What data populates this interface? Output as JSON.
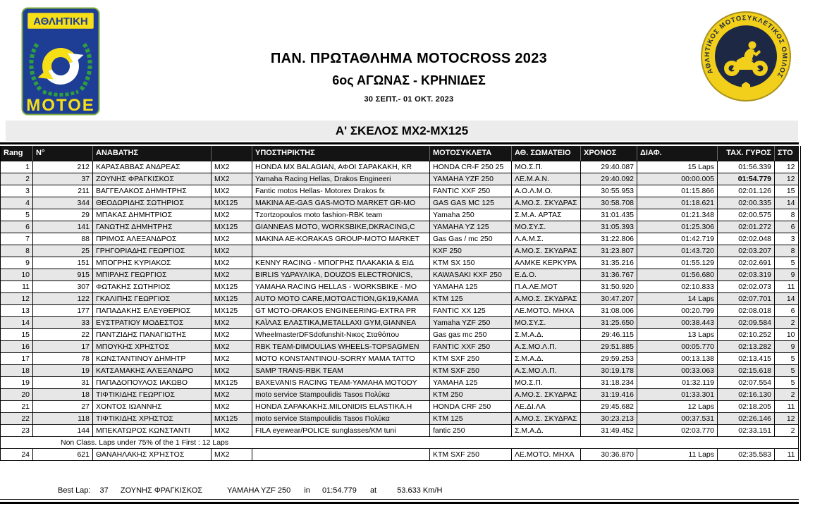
{
  "header": {
    "title": "ΠΑΝ. ΠΡΩΤΑΘΛΗΜΑ MOTOCROSS 2023",
    "subtitle": "6ος ΑΓΩΝΑΣ - ΚΡΗΝΙΔΕΣ",
    "date_range": "30 ΣΕΠΤ.- 01 ΟΚΤ. 2023",
    "section_title": "Α' ΣΚΕΛΟΣ MX2-MX125"
  },
  "left_logo": {
    "top_text": "ΑΘΛΗΤΙΚΗ",
    "bottom_text": "ΜΟΤΟΕ"
  },
  "right_logo": {
    "ring_text": "ΑΘΛΗΤΙΚΟΣ ΜΟΤΟΣΥΚΛΕΤΙΚΟΣ ΟΜΙΛΟΣ ΚΡΗΝΙΔΩΝ",
    "icon": "motorcycle-rider-icon"
  },
  "table": {
    "columns": [
      "Rang",
      "N°",
      "ΑΝΑΒΑΤΗΣ",
      "",
      "ΥΠΟΣΤΗΡΙΚΤΗΣ",
      "ΜΟΤΟΣΥΚΛΕΤΑ",
      "ΑΘ. ΣΩΜΑΤΕΙΟ",
      "ΧΡΟΝΟΣ",
      "ΔΙΑΦ.",
      "ΤΑΧ. ΓΥΡΟΣ",
      "ΣΤΟ"
    ],
    "note": "Non Class. Laps under 75% of the 1 First : 12 Laps",
    "rows": [
      {
        "rank": "1",
        "num": "212",
        "rider": "ΚΑΡΑΣΑΒΒΑΣ ΑΝΔΡΕΑΣ",
        "cls": "MX2",
        "sponsor": "HONDA MX BALAGIAN, ΑΦΟΙ ΣΑΡΑΚΑΚΗ, KR",
        "bike": "HONDA CR-F 250 25",
        "club": "ΜΟ.Σ.Π.",
        "time": "29:40.087",
        "diff": "15 Laps",
        "blap": "01:56.339",
        "lap": "12"
      },
      {
        "rank": "2",
        "num": "37",
        "rider": "ΖΟΥΝΗΣ ΦΡΑΓΚΙΣΚΟΣ",
        "cls": "MX2",
        "sponsor": "Yamaha Racing Hellas, Drakos Engineeri",
        "bike": "YAMAHA YZF 250",
        "club": "ΛΕ.Μ.Α.Ν.",
        "time": "29:40.092",
        "diff": "00:00.005",
        "blap": "01:54.779",
        "lap": "12",
        "overall_best": true
      },
      {
        "rank": "3",
        "num": "211",
        "rider": "ΒΑΓΓΕΛΑΚΟΣ ΔΗΜΗΤΡΗΣ",
        "cls": "MX2",
        "sponsor": "Fantic motos Hellas- Motorex Drakos fx",
        "bike": "FANTIC XXF 250",
        "club": "Α.Ο.Λ.Μ.Ο.",
        "time": "30:55.953",
        "diff": "01:15.866",
        "blap": "02:01.126",
        "lap": "15"
      },
      {
        "rank": "4",
        "num": "344",
        "rider": "ΘΕΟΔΩΡΙΔΗΣ ΣΩΤΗΡΙΟΣ",
        "cls": "MX125",
        "sponsor": "MAKINA AE-GAS GAS-MOTO MARKET GR-MO",
        "bike": "GAS GAS MC 125",
        "club": "Α.ΜΟ.Σ. ΣΚΥΔΡΑΣ",
        "time": "30:58.708",
        "diff": "01:18.621",
        "blap": "02:00.335",
        "lap": "14"
      },
      {
        "rank": "5",
        "num": "29",
        "rider": "ΜΠΑΚΑΣ ΔΗΜΗΤΡΙΟΣ",
        "cls": "MX2",
        "sponsor": "Tzortzopoulos moto fashion-RBK team",
        "bike": "Yamaha 250",
        "club": "Σ.Μ.Α. ΑΡΤΑΣ",
        "time": "31:01.435",
        "diff": "01:21.348",
        "blap": "02:00.575",
        "lap": "8"
      },
      {
        "rank": "6",
        "num": "141",
        "rider": "ΓΑΝΩΤΗΣ ΔΗΜΗΤΡΗΣ",
        "cls": "MX125",
        "sponsor": "GIANNEAS MOTO, WORKSBIKE,DKRACING,C",
        "bike": "YAMAHA YZ 125",
        "club": "ΜΟ.ΣΥ.Σ.",
        "time": "31:05.393",
        "diff": "01:25.306",
        "blap": "02:01.272",
        "lap": "6"
      },
      {
        "rank": "7",
        "num": "88",
        "rider": "ΠΡΙΜΟΣ ΑΛΕΞΑΝΔΡΟΣ",
        "cls": "MX2",
        "sponsor": "MAKINA AE-KORAKAS GROUP-MOTO MARKET",
        "bike": "Gas Gas / mc 250",
        "club": "Λ.Α.Μ.Σ.",
        "time": "31:22.806",
        "diff": "01:42.719",
        "blap": "02:02.048",
        "lap": "3"
      },
      {
        "rank": "8",
        "num": "25",
        "rider": "ΓΡΗΓΟΡΙΑΔΗΣ ΓΕΩΡΓΙΟΣ",
        "cls": "MX2",
        "sponsor": "",
        "bike": "KXF 250",
        "club": "Α.ΜΟ.Σ. ΣΚΥΔΡΑΣ",
        "time": "31:23.807",
        "diff": "01:43.720",
        "blap": "02:03.207",
        "lap": "8"
      },
      {
        "rank": "9",
        "num": "151",
        "rider": "ΜΠΟΓΡΗΣ ΚΥΡΙΑΚΟΣ",
        "cls": "MX2",
        "sponsor": "KENNY RACING - ΜΠΟΓΡΗΣ ΠΛΑΚΑΚΙΑ & ΕΙΔ",
        "bike": "KTM SX 150",
        "club": "ΑΛΜΚΕ ΚΕΡΚΥΡΑ",
        "time": "31:35.216",
        "diff": "01:55.129",
        "blap": "02:02.691",
        "lap": "5"
      },
      {
        "rank": "10",
        "num": "915",
        "rider": "ΜΠΙΡΛΗΣ ΓΕΩΡΓΙΟΣ",
        "cls": "MX2",
        "sponsor": "BIRLIS ΥΔΡΑΥΛΙΚΑ, DOUZOS ELECTRONICS,",
        "bike": "KAWASAKI KXF 250",
        "club": "Ε.Δ.Ο.",
        "time": "31:36.767",
        "diff": "01:56.680",
        "blap": "02:03.319",
        "lap": "9"
      },
      {
        "rank": "11",
        "num": "307",
        "rider": "ΦΩΤΑΚΗΣ ΣΩΤΗΡΙΟΣ",
        "cls": "MX125",
        "sponsor": "YAMAHA RACING HELLAS - WORKSBIKE - MO",
        "bike": "YAMAHA 125",
        "club": "Π.Α.ΛΕ.ΜΟΤ",
        "time": "31:50.920",
        "diff": "02:10.833",
        "blap": "02:02.073",
        "lap": "11"
      },
      {
        "rank": "12",
        "num": "122",
        "rider": "ΓΚΑΛΙΠΗΣ ΓΕΩΡΓΙΟΣ",
        "cls": "MX125",
        "sponsor": "AUTO MOTO CARE,MOTOACTION,GK19,KAMA",
        "bike": "KTM 125",
        "club": "Α.ΜΟ.Σ. ΣΚΥΔΡΑΣ",
        "time": "30:47.207",
        "diff": "14 Laps",
        "blap": "02:07.701",
        "lap": "14"
      },
      {
        "rank": "13",
        "num": "177",
        "rider": "ΠΑΠΑΔΑΚΗΣ ΕΛΕΥΘΕΡΙΟΣ",
        "cls": "MX125",
        "sponsor": "GT MOTO-DRAKOS ENGINEERING-EXTRA PR",
        "bike": "FANTIC XX 125",
        "club": "ΛΕ.ΜΟΤΟ. ΜΗΧΑ",
        "time": "31:08.006",
        "diff": "00:20.799",
        "blap": "02:08.018",
        "lap": "6"
      },
      {
        "rank": "14",
        "num": "33",
        "rider": "ΕΥΣΤΡΑΤΙΟΥ ΜΟΔΕΣΤΟΣ",
        "cls": "MX2",
        "sponsor": "ΚΑΪΛΑΣ ΕΛΑΣΤΙΚΑ,METALLAXI GYM,GIANNEA",
        "bike": "Yamaha YZF 250",
        "club": "ΜΟ.ΣΥ.Σ.",
        "time": "31:25.650",
        "diff": "00:38.443",
        "blap": "02:09.584",
        "lap": "2"
      },
      {
        "rank": "15",
        "num": "22",
        "rider": "ΠΑΝΤΖΙΔΗΣ ΠΑΝΑΓΙΩΤΗΣ",
        "cls": "MX2",
        "sponsor": "WheelmasterDFSdofunshit-Νικος Σταθόπου",
        "bike": "Gas gas mc 250",
        "club": "Σ.Μ.Α.Δ.",
        "time": "29:46.115",
        "diff": "13 Laps",
        "blap": "02:10.252",
        "lap": "10"
      },
      {
        "rank": "16",
        "num": "17",
        "rider": "ΜΠΟΥΚΗΣ ΧΡΗΣΤΟΣ",
        "cls": "MX2",
        "sponsor": "RBK TEAM-DIMOULIAS WHEELS-TOPSAGMEN",
        "bike": "FANTIC XXF 250",
        "club": "Α.Σ.ΜΟ.Λ.Π.",
        "time": "29:51.885",
        "diff": "00:05.770",
        "blap": "02:13.282",
        "lap": "9"
      },
      {
        "rank": "17",
        "num": "78",
        "rider": "ΚΩΝΣΤΑΝΤΙΝΟΥ ΔΗΜΗΤΡ",
        "cls": "MX2",
        "sponsor": "MOTO KONSTANTINOU-SORRY MAMA TATTO",
        "bike": "KTM SXF 250",
        "club": "Σ.Μ.Α.Δ.",
        "time": "29:59.253",
        "diff": "00:13.138",
        "blap": "02:13.415",
        "lap": "5"
      },
      {
        "rank": "18",
        "num": "19",
        "rider": "ΚΑΤΣΑΜΑΚΗΣ ΑΛΈΞΑΝΔΡΟ",
        "cls": "MX2",
        "sponsor": "SAMP TRANS-RBK TEAM",
        "bike": "KTM SXF 250",
        "club": "Α.Σ.ΜΟ.Λ.Π.",
        "time": "30:19.178",
        "diff": "00:33.063",
        "blap": "02:15.618",
        "lap": "5"
      },
      {
        "rank": "19",
        "num": "31",
        "rider": "ΠΑΠΑΔΟΠΟΥΛΟΣ ΙΑΚΩΒΟ",
        "cls": "MX125",
        "sponsor": "BAXEVANIS RACING TEAM-YAMAHA MOTODY",
        "bike": "YAMAHA 125",
        "club": "ΜΟ.Σ.Π.",
        "time": "31:18.234",
        "diff": "01:32.119",
        "blap": "02:07.554",
        "lap": "5"
      },
      {
        "rank": "20",
        "num": "18",
        "rider": "ΤΙΦΤΙΚΙΔΗΣ ΓΕΩΡΓΙΟΣ",
        "cls": "MX2",
        "sponsor": "moto service Stampoulidis Tasos Πολύκα",
        "bike": "KTM 250",
        "club": "Α.ΜΟ.Σ. ΣΚΥΔΡΑΣ",
        "time": "31:19.416",
        "diff": "01:33.301",
        "blap": "02:16.130",
        "lap": "2"
      },
      {
        "rank": "21",
        "num": "27",
        "rider": "ΧΟΝΤΟΣ ΙΩΑΝΝΗΣ",
        "cls": "MX2",
        "sponsor": "HONDA ΣΑΡΑΚΑΚΗΣ.MILONIDIS ELASTIKA.H",
        "bike": "HONDA CRF 250",
        "club": "ΛΕ.ΔΙ.ΛΑ",
        "time": "29:45.682",
        "diff": "12 Laps",
        "blap": "02:18.205",
        "lap": "11"
      },
      {
        "rank": "22",
        "num": "118",
        "rider": "ΤΙΦΤΙΚΙΔΗΣ ΧΡΗΣΤΟΣ",
        "cls": "MX125",
        "sponsor": "moto service Stampoulidis Tasos Πολύκα",
        "bike": "KTM 125",
        "club": "Α.ΜΟ.Σ. ΣΚΥΔΡΑΣ",
        "time": "30:23.213",
        "diff": "00:37.531",
        "blap": "02:26.146",
        "lap": "12"
      },
      {
        "rank": "23",
        "num": "144",
        "rider": "ΜΠΕΚΑΤΩΡΟΣ ΚΩΝΣΤΑΝΤΙ",
        "cls": "MX2",
        "sponsor": "FILA eyewear/POLICE sunglasses/KM tuni",
        "bike": "fantic 250",
        "club": "Σ.Μ.Α.Δ.",
        "time": "31:49.452",
        "diff": "02:03.770",
        "blap": "02:33.151",
        "lap": "2"
      },
      {
        "rank": "24",
        "num": "621",
        "rider": "ΘΑΝΑΗΛΑΚΗΣ ΧΡΉΣΤΟΣ",
        "cls": "MX2",
        "sponsor": "",
        "bike": "KTM SXF 250",
        "club": "ΛΕ.ΜΟΤΟ. ΜΗΧΑ",
        "time": "30:36.870",
        "diff": "11 Laps",
        "blap": "02:35.583",
        "lap": "11"
      }
    ]
  },
  "footer": {
    "best_lap": {
      "label": "Best Lap:",
      "number": "37",
      "rider": "ΖΟΥΝΗΣ ΦΡΑΓΚΙΣΚΟΣ",
      "bike": "YAMAHA YZF 250",
      "in_word": "in",
      "time": "01:54.779",
      "at_word": "at",
      "speed": "53.633 Km/H"
    }
  },
  "colors": {
    "header_band": "#141414",
    "row_stripe": "#e7e7e7",
    "section_band": "#ececec",
    "logo_blue": "#1e3d94",
    "logo_yellow": "#f6df17",
    "logo_green": "#2f9e3f",
    "badge_yellow": "#f2cf1b",
    "badge_navy": "#1c2844"
  }
}
